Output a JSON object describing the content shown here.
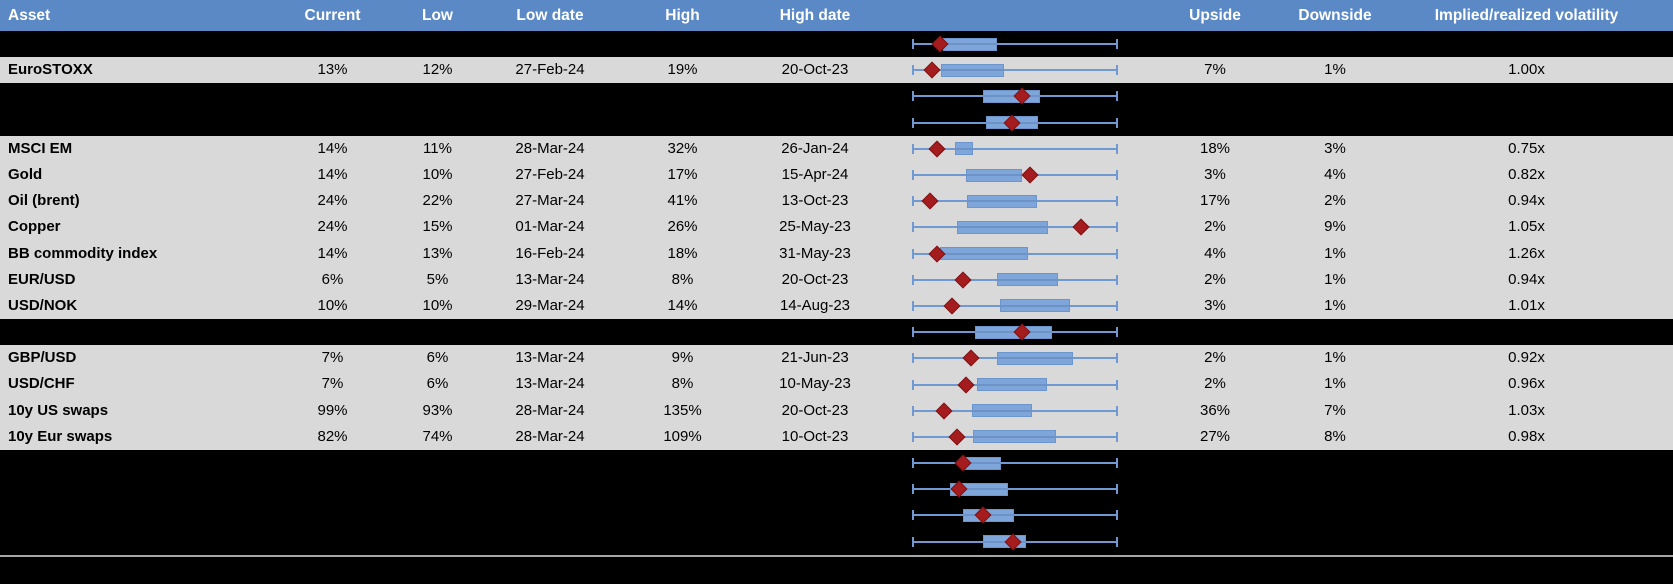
{
  "colors": {
    "header_bg": "#5b89c5",
    "header_text": "#ffffff",
    "row_bg": "#d9d9d9",
    "band_bg": "#000000",
    "whisker_blue": "#6f99d0",
    "box_blue": "#7ea6da",
    "diamond_red": "#a51c1f",
    "separator_gray": "#a6a6a6"
  },
  "header": {
    "columns": [
      "Asset",
      "Current",
      "Low",
      "Low date",
      "High",
      "High date",
      "",
      "Upside",
      "Downside",
      "Implied/realized volatility"
    ]
  },
  "chart_data": {
    "type": "boxplot",
    "orientation": "horizontal",
    "note": "Each row has a horizontal whisker spanning a fixed range; box and diamond positions are normalized 0-1 between left and right whisker caps. Diamond = dark red marker, box = blue interquartile box.",
    "axis_labels_visible": false
  },
  "rows": [
    {
      "type": "chart",
      "boxplot": {
        "box": [
          0.147,
          0.412
        ],
        "diamond": 0.132
      }
    },
    {
      "type": "data",
      "asset": "EuroSTOXX",
      "current": "13%",
      "low": "12%",
      "low_date": "27-Feb-24",
      "high": "19%",
      "high_date": "20-Oct-23",
      "upside": "7%",
      "downside": "1%",
      "impl_real": "1.00x",
      "boxplot": {
        "box": [
          0.137,
          0.446
        ],
        "diamond": 0.093
      }
    },
    {
      "type": "chart",
      "boxplot": {
        "box": [
          0.343,
          0.623
        ],
        "diamond": 0.534
      }
    },
    {
      "type": "chart",
      "boxplot": {
        "box": [
          0.358,
          0.613
        ],
        "diamond": 0.485
      }
    },
    {
      "type": "data",
      "asset": "MSCI EM",
      "current": "14%",
      "low": "11%",
      "low_date": "28-Mar-24",
      "high": "32%",
      "high_date": "26-Jan-24",
      "upside": "18%",
      "downside": "3%",
      "impl_real": "0.75x",
      "boxplot": {
        "box": [
          0.206,
          0.294
        ],
        "diamond": 0.118
      }
    },
    {
      "type": "data",
      "asset": "Gold",
      "current": "14%",
      "low": "10%",
      "low_date": "27-Feb-24",
      "high": "17%",
      "high_date": "15-Apr-24",
      "upside": "3%",
      "downside": "4%",
      "impl_real": "0.82x",
      "boxplot": {
        "box": [
          0.26,
          0.534
        ],
        "diamond": 0.574
      }
    },
    {
      "type": "data",
      "asset": "Oil (brent)",
      "current": "24%",
      "low": "22%",
      "low_date": "27-Mar-24",
      "high": "41%",
      "high_date": "13-Oct-23",
      "upside": "17%",
      "downside": "2%",
      "impl_real": "0.94x",
      "boxplot": {
        "box": [
          0.265,
          0.608
        ],
        "diamond": 0.083
      }
    },
    {
      "type": "data",
      "asset": "Copper",
      "current": "24%",
      "low": "15%",
      "low_date": "01-Mar-24",
      "high": "26%",
      "high_date": "25-May-23",
      "upside": "2%",
      "downside": "9%",
      "impl_real": "1.05x",
      "boxplot": {
        "box": [
          0.216,
          0.662
        ],
        "diamond": 0.824
      }
    },
    {
      "type": "data",
      "asset": "BB commodity index",
      "current": "14%",
      "low": "13%",
      "low_date": "16-Feb-24",
      "high": "18%",
      "high_date": "31-May-23",
      "upside": "4%",
      "downside": "1%",
      "impl_real": "1.26x",
      "boxplot": {
        "box": [
          0.132,
          0.564
        ],
        "diamond": 0.118
      }
    },
    {
      "type": "data",
      "asset": "EUR/USD",
      "current": "6%",
      "low": "5%",
      "low_date": "13-Mar-24",
      "high": "8%",
      "high_date": "20-Oct-23",
      "upside": "2%",
      "downside": "1%",
      "impl_real": "0.94x",
      "boxplot": {
        "box": [
          0.412,
          0.711
        ],
        "diamond": 0.245
      }
    },
    {
      "type": "data",
      "asset": "USD/NOK",
      "current": "10%",
      "low": "10%",
      "low_date": "29-Mar-24",
      "high": "14%",
      "high_date": "14-Aug-23",
      "upside": "3%",
      "downside": "1%",
      "impl_real": "1.01x",
      "boxplot": {
        "box": [
          0.426,
          0.77
        ],
        "diamond": 0.191
      }
    },
    {
      "type": "chart",
      "boxplot": {
        "box": [
          0.304,
          0.681
        ],
        "diamond": 0.534
      }
    },
    {
      "type": "data",
      "asset": "GBP/USD",
      "current": "7%",
      "low": "6%",
      "low_date": "13-Mar-24",
      "high": "9%",
      "high_date": "21-Jun-23",
      "upside": "2%",
      "downside": "1%",
      "impl_real": "0.92x",
      "boxplot": {
        "box": [
          0.412,
          0.784
        ],
        "diamond": 0.284
      }
    },
    {
      "type": "data",
      "asset": "USD/CHF",
      "current": "7%",
      "low": "6%",
      "low_date": "13-Mar-24",
      "high": "8%",
      "high_date": "10-May-23",
      "upside": "2%",
      "downside": "1%",
      "impl_real": "0.96x",
      "boxplot": {
        "box": [
          0.314,
          0.657
        ],
        "diamond": 0.26
      }
    },
    {
      "type": "data",
      "asset": "10y US swaps",
      "current": "99%",
      "low": "93%",
      "low_date": "28-Mar-24",
      "high": "135%",
      "high_date": "20-Oct-23",
      "upside": "36%",
      "downside": "7%",
      "impl_real": "1.03x",
      "boxplot": {
        "box": [
          0.289,
          0.583
        ],
        "diamond": 0.152
      }
    },
    {
      "type": "data",
      "asset": "10y Eur swaps",
      "current": "82%",
      "low": "74%",
      "low_date": "28-Mar-24",
      "high": "109%",
      "high_date": "10-Oct-23",
      "upside": "27%",
      "downside": "8%",
      "impl_real": "0.98x",
      "boxplot": {
        "box": [
          0.294,
          0.701
        ],
        "diamond": 0.216
      }
    },
    {
      "type": "chart",
      "boxplot": {
        "box": [
          0.255,
          0.431
        ],
        "diamond": 0.245
      }
    },
    {
      "type": "chart",
      "boxplot": {
        "box": [
          0.181,
          0.466
        ],
        "diamond": 0.225
      }
    },
    {
      "type": "chart",
      "boxplot": {
        "box": [
          0.245,
          0.495
        ],
        "diamond": 0.343
      }
    },
    {
      "type": "chart",
      "boxplot": {
        "box": [
          0.343,
          0.554
        ],
        "diamond": 0.49
      }
    }
  ]
}
